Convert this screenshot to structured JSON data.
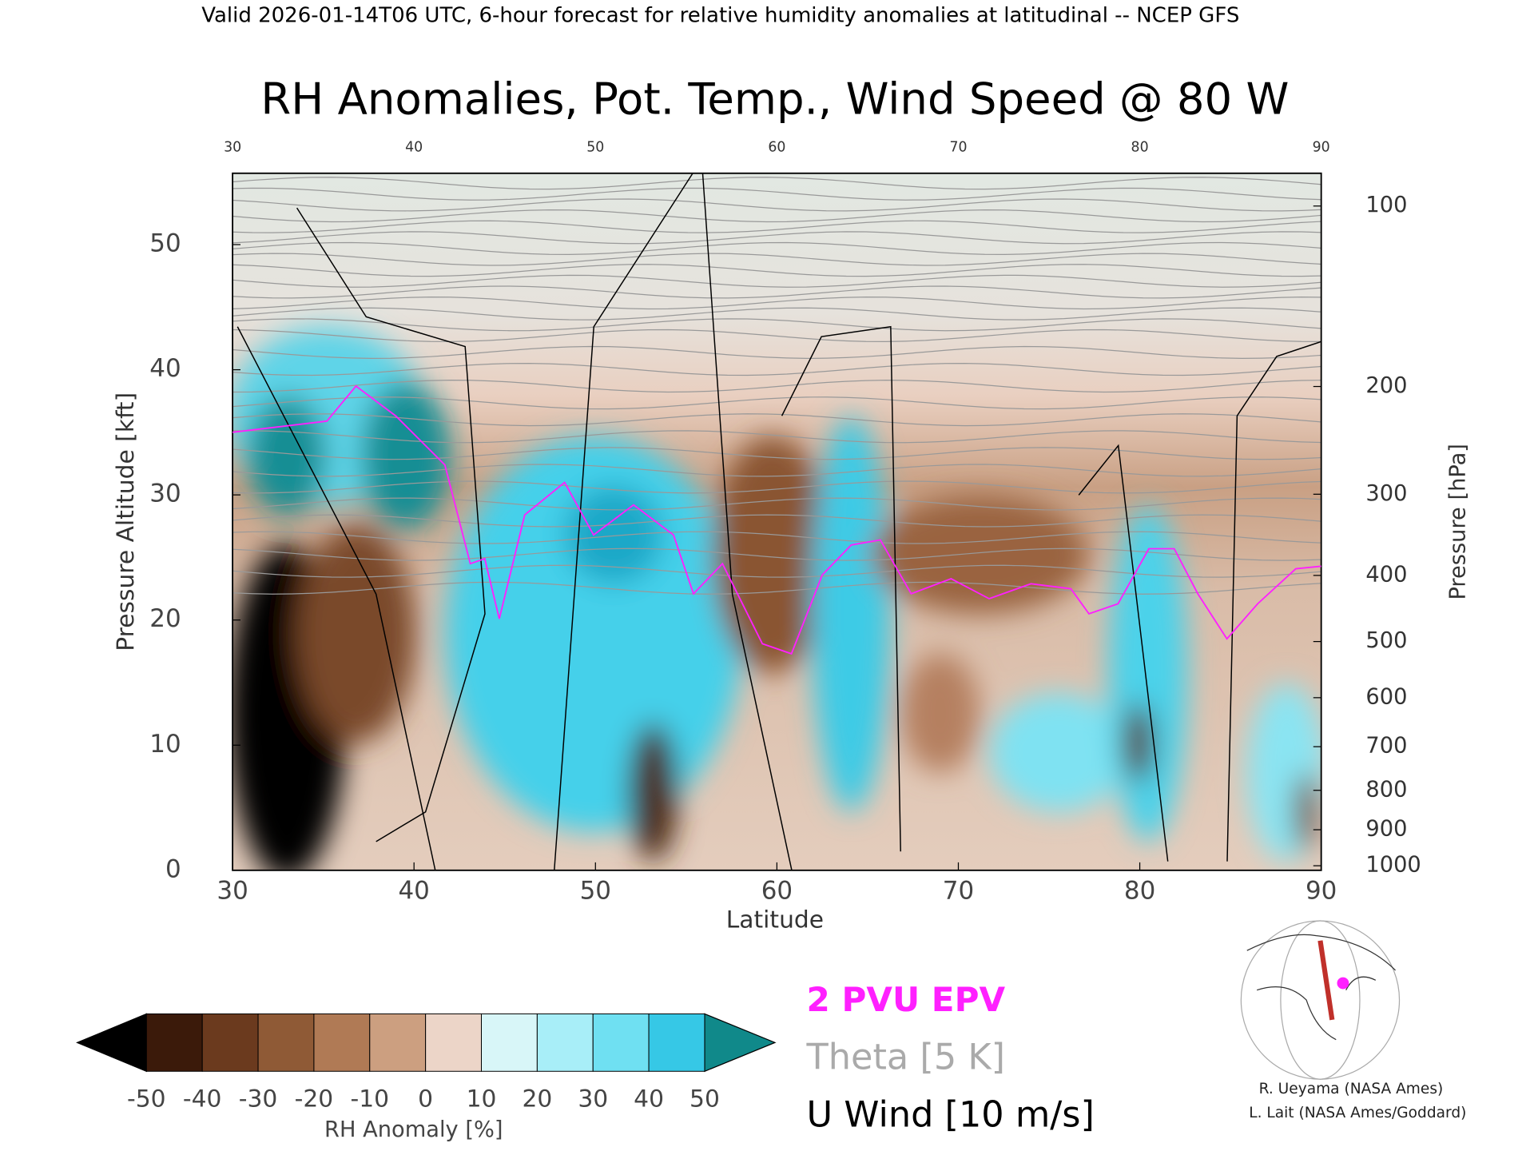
{
  "chart_data": {
    "type": "line",
    "header": "Valid 2026-01-14T06 UTC, 6-hour forecast for relative humidity anomalies at latitudinal -- NCEP GFS",
    "title": "RH Anomalies, Pot. Temp., Wind Speed @ 80 W",
    "x_label": "Latitude",
    "y_label": "Pressure Altitude [kft]",
    "y2_label": "Pressure [hPa]",
    "xlim": [
      30,
      90
    ],
    "xticks": [
      30,
      40,
      50,
      60,
      70,
      80,
      90
    ],
    "ylim": [
      0,
      55.7
    ],
    "yticks": [
      0,
      10,
      20,
      30,
      40,
      50
    ],
    "y2scale": "pressure-altitude",
    "y2ticks": [
      100,
      200,
      300,
      400,
      500,
      600,
      700,
      800,
      900,
      1000
    ],
    "series": [
      {
        "name": "2 PVU EPV",
        "color": "#ff20ff",
        "x": [
          30,
          35.2,
          36.8,
          39,
          41.7,
          43.1,
          43.9,
          44.7,
          46.1,
          48.3,
          49.9,
          52.1,
          54.3,
          55.4,
          57,
          59.2,
          60.8,
          62.5,
          64.1,
          65.7,
          67.4,
          69.6,
          71.7,
          74,
          76.2,
          77.2,
          78.8,
          80.5,
          81.9,
          83.2,
          84.8,
          86.5,
          88.6,
          90
        ],
        "values": [
          35,
          35.9,
          38.7,
          36.3,
          32.4,
          24.5,
          24.9,
          20.1,
          28.4,
          31,
          26.8,
          29.2,
          26.8,
          22.1,
          24.5,
          18.1,
          17.3,
          23.6,
          26,
          26.4,
          22.1,
          23.3,
          21.7,
          22.9,
          22.5,
          20.5,
          21.3,
          25.7,
          25.7,
          22.1,
          18.5,
          21.3,
          24.1,
          24.3
        ]
      }
    ],
    "legend_extra": [
      {
        "name": "Theta [5 K]",
        "color": "#aaaaaa"
      },
      {
        "name": "U Wind [10 m/s]",
        "color": "#000000"
      }
    ],
    "colorbar": {
      "label": "RH Anomaly [%]",
      "ticks": [
        -50,
        -40,
        -30,
        -20,
        -10,
        0,
        10,
        20,
        30,
        40,
        50
      ],
      "colors": [
        "#3b1a0a",
        "#6b3a1e",
        "#8f5a36",
        "#b07a55",
        "#cc9f80",
        "#ecd5c8",
        "#d8f6f8",
        "#a8eef8",
        "#6fe0f2",
        "#36c8e6",
        "#0aa2c8"
      ],
      "under_color": "#000000",
      "over_color": "#10898a"
    },
    "credits": [
      "R. Ueyama (NASA Ames)",
      "L. Lait (NASA Ames/Goddard)"
    ]
  }
}
